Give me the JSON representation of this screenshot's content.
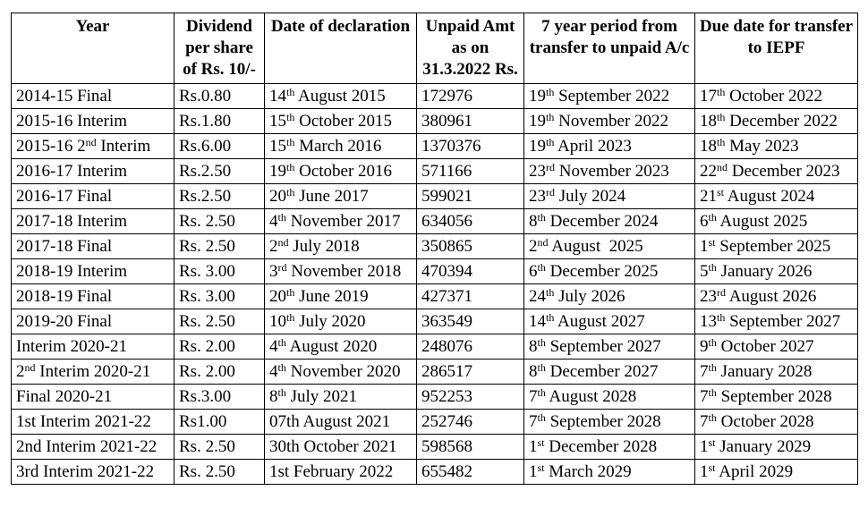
{
  "headers": [
    "Year",
    "Dividend per share of Rs. 10/-",
    "Date of declaration",
    "Unpaid Amt as on 31.3.2022 Rs.",
    "7 year period from transfer to unpaid A/c",
    "Due date for transfer to IEPF"
  ],
  "rows": [
    {
      "year": "2014-15 Final",
      "dividend": "Rs.0.80",
      "decl": {
        "pre": "14",
        "sup": "th",
        "post": " August 2015"
      },
      "amount": "172976",
      "period": {
        "pre": "19",
        "sup": "th",
        "post": " September 2022"
      },
      "due": {
        "pre": "17",
        "sup": "th",
        "post": " October 2022"
      }
    },
    {
      "year": "2015-16 Interim",
      "dividend": "Rs.1.80",
      "decl": {
        "pre": "15",
        "sup": "th",
        "post": " October 2015"
      },
      "amount": "380961",
      "period": {
        "pre": "19",
        "sup": "th",
        "post": " November 2022"
      },
      "due": {
        "pre": "18",
        "sup": "th",
        "post": " December 2022"
      }
    },
    {
      "year": {
        "pre": "2015-16 2",
        "sup": "nd",
        "post": " Interim"
      },
      "dividend": "Rs.6.00",
      "decl": {
        "pre": "15",
        "sup": "th",
        "post": " March 2016"
      },
      "amount": "1370376",
      "period": {
        "pre": "19",
        "sup": "th",
        "post": " April 2023"
      },
      "due": {
        "pre": "18",
        "sup": "th",
        "post": " May 2023"
      }
    },
    {
      "year": "2016-17 Interim",
      "dividend": "Rs.2.50",
      "decl": {
        "pre": "19",
        "sup": "th",
        "post": " October 2016"
      },
      "amount": "571166",
      "period": {
        "pre": "23",
        "sup": "rd",
        "post": " November 2023"
      },
      "due": {
        "pre": "22",
        "sup": "nd",
        "post": " December 2023"
      }
    },
    {
      "year": "2016-17 Final",
      "dividend": "Rs.2.50",
      "decl": {
        "pre": "20",
        "sup": "th",
        "post": " June 2017"
      },
      "amount": "599021",
      "period": {
        "pre": "23",
        "sup": "rd",
        "post": " July 2024"
      },
      "due": {
        "pre": "21",
        "sup": "st",
        "post": " August 2024"
      }
    },
    {
      "year": "2017-18 Interim",
      "dividend": "Rs. 2.50",
      "decl": {
        "pre": "4",
        "sup": "th",
        "post": " November 2017"
      },
      "amount": "634056",
      "period": {
        "pre": "8",
        "sup": "th",
        "post": " December 2024"
      },
      "due": {
        "pre": "6",
        "sup": "th",
        "post": " August 2025"
      }
    },
    {
      "year": "2017-18 Final",
      "dividend": "Rs. 2.50",
      "decl": {
        "pre": "2",
        "sup": "nd",
        "post": " July 2018"
      },
      "amount": "350865",
      "period": {
        "pre": "2",
        "sup": "nd",
        "post": " August  2025"
      },
      "due": {
        "pre": "1",
        "sup": "st",
        "post": " September 2025"
      }
    },
    {
      "year": "2018-19 Interim",
      "dividend": "Rs. 3.00",
      "decl": {
        "pre": "3",
        "sup": "rd",
        "post": " November 2018"
      },
      "amount": "470394",
      "period": {
        "pre": "6",
        "sup": "th",
        "post": " December 2025"
      },
      "due": {
        "pre": "5",
        "sup": "th",
        "post": " January 2026"
      }
    },
    {
      "year": "2018-19 Final",
      "dividend": "Rs. 3.00",
      "decl": {
        "pre": "20",
        "sup": "th",
        "post": " June 2019"
      },
      "amount": "427371",
      "period": {
        "pre": "24",
        "sup": "th",
        "post": " July 2026"
      },
      "due": {
        "pre": "23",
        "sup": "rd",
        "post": " August 2026"
      }
    },
    {
      "year": "2019-20 Final",
      "dividend": "Rs. 2.50",
      "decl": {
        "pre": "10",
        "sup": "th",
        "post": " July 2020"
      },
      "amount": "363549",
      "period": {
        "pre": "14",
        "sup": "th",
        "post": " August 2027"
      },
      "due": {
        "pre": "13",
        "sup": "th",
        "post": " September 2027"
      }
    },
    {
      "year": "Interim 2020-21",
      "dividend": "Rs. 2.00",
      "decl": {
        "pre": "4",
        "sup": "th",
        "post": " August 2020"
      },
      "amount": "248076",
      "period": {
        "pre": "8",
        "sup": "th",
        "post": " September 2027"
      },
      "due": {
        "pre": "9",
        "sup": "th",
        "post": " October 2027"
      }
    },
    {
      "year": {
        "pre": "2",
        "sup": "nd",
        "post": " Interim 2020-21"
      },
      "dividend": "Rs. 2.00",
      "decl": {
        "pre": "4",
        "sup": "th",
        "post": " November 2020"
      },
      "amount": "286517",
      "period": {
        "pre": "8",
        "sup": "th",
        "post": " December 2027"
      },
      "due": {
        "pre": "7",
        "sup": "th",
        "post": " January 2028"
      }
    },
    {
      "year": "Final 2020-21",
      "dividend": "Rs.3.00",
      "decl": {
        "pre": "8",
        "sup": "th",
        "post": " July 2021"
      },
      "amount": "952253",
      "period": {
        "pre": "7",
        "sup": "th",
        "post": " August 2028"
      },
      "due": {
        "pre": "7",
        "sup": "th",
        "post": " September 2028"
      }
    },
    {
      "year": "1st Interim 2021-22",
      "dividend": "Rs1.00",
      "decl": "07th August 2021",
      "amount": "252746",
      "period": {
        "pre": "7",
        "sup": "th",
        "post": " September 2028"
      },
      "due": {
        "pre": "7",
        "sup": "th",
        "post": " October 2028"
      }
    },
    {
      "year": "2nd Interim 2021-22",
      "dividend": "Rs. 2.50",
      "decl": "30th October 2021",
      "amount": "598568",
      "period": {
        "pre": "1",
        "sup": "st",
        "post": " December 2028"
      },
      "due": {
        "pre": "1",
        "sup": "st",
        "post": " January 2029"
      }
    },
    {
      "year": "3rd Interim 2021-22",
      "dividend": "Rs. 2.50",
      "decl": "1st February 2022",
      "amount": "655482",
      "period": {
        "pre": "1",
        "sup": "st",
        "post": " March 2029"
      },
      "due": {
        "pre": "1",
        "sup": "st",
        "post": " April 2029"
      }
    }
  ]
}
